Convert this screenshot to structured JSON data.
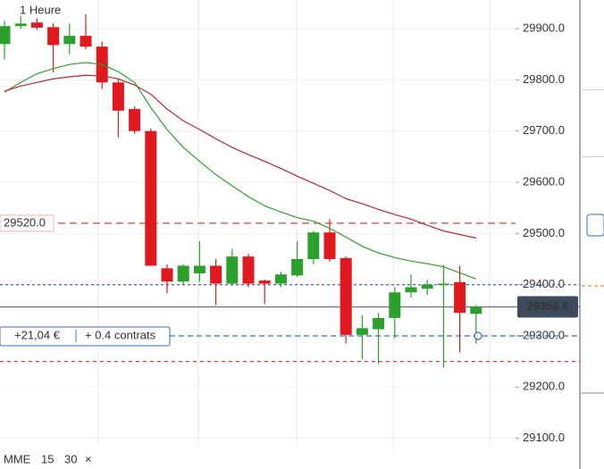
{
  "chart_data": {
    "type": "candlestick",
    "timeframe": "1 Heure",
    "up_color": "#2ca02c",
    "down_color": "#e0191f",
    "candles": {
      "open": [
        29870,
        29905,
        29912,
        29903,
        29870,
        29886,
        29865,
        29795,
        29743,
        29700,
        29432,
        29406,
        29422,
        29437,
        29402,
        29455,
        29408,
        29402,
        29418,
        29450,
        29502,
        29452,
        29302,
        29313,
        29335,
        29385,
        29392,
        29400,
        29405,
        29343
      ],
      "high": [
        29915,
        29925,
        29920,
        29910,
        29910,
        29928,
        29875,
        29800,
        29748,
        29705,
        29440,
        29440,
        29485,
        29450,
        29470,
        29460,
        29410,
        29425,
        29485,
        29505,
        29528,
        29455,
        29340,
        29345,
        29395,
        29420,
        29410,
        29438,
        29437,
        29360
      ],
      "low": [
        29840,
        29900,
        29898,
        29815,
        29850,
        29860,
        29782,
        29688,
        29695,
        29437,
        29383,
        29400,
        29405,
        29360,
        29398,
        29395,
        29362,
        29395,
        29415,
        29440,
        29445,
        29285,
        29255,
        29245,
        29295,
        29375,
        29380,
        29238,
        29268,
        29285
      ],
      "close": [
        29905,
        29910,
        29902,
        29868,
        29886,
        29865,
        29795,
        29740,
        29700,
        29437,
        29406,
        29437,
        29437,
        29402,
        29455,
        29402,
        29402,
        29420,
        29450,
        29502,
        29450,
        29302,
        29315,
        29335,
        29385,
        29395,
        29400,
        29402,
        29345,
        29357
      ]
    },
    "legend_title": "MME",
    "legend_close": "×",
    "series": [
      {
        "name": "15",
        "color": "#2ca02c",
        "values": [
          29776,
          29795,
          29812,
          29822,
          29830,
          29834,
          29830,
          29816,
          29795,
          29746,
          29703,
          29668,
          29641,
          29615,
          29593,
          29572,
          29554,
          29542,
          29531,
          29524,
          29510,
          29493,
          29475,
          29462,
          29453,
          29446,
          29441,
          29435,
          29423,
          29411
        ]
      },
      {
        "name": "30",
        "color": "#c0272d",
        "values": [
          29778,
          29788,
          29795,
          29802,
          29806,
          29809,
          29808,
          29802,
          29790,
          29772,
          29743,
          29720,
          29703,
          29685,
          29668,
          29654,
          29641,
          29627,
          29612,
          29598,
          29584,
          29568,
          29558,
          29547,
          29537,
          29528,
          29516,
          29505,
          29498,
          29491
        ]
      }
    ],
    "ylim": [
      29040,
      29956
    ],
    "yticks": [
      {
        "value": 29900,
        "label": "29900.0"
      },
      {
        "value": 29800,
        "label": "29800.0"
      },
      {
        "value": 29700,
        "label": "29700.0"
      },
      {
        "value": 29600,
        "label": "29600.0"
      },
      {
        "value": 29500,
        "label": "29500.0"
      },
      {
        "value": 29400,
        "label": "29400.0"
      },
      {
        "value": 29300,
        "label": "29300.0"
      },
      {
        "value": 29200,
        "label": "29200.0"
      },
      {
        "value": 29100,
        "label": "29100.0"
      }
    ],
    "alert_line": {
      "value": 29520,
      "label": "29520.0",
      "color": "#e04040"
    },
    "stop_line": {
      "value": 29250,
      "color": "#e04040"
    },
    "order_line": {
      "value": 29400,
      "color": "#5a6fc0"
    },
    "current_price": 29356.6,
    "position": {
      "price": 29300,
      "pnl": "+21,04 €",
      "size": "+ 0.4 contrats",
      "color": "#3a6fb0"
    }
  }
}
